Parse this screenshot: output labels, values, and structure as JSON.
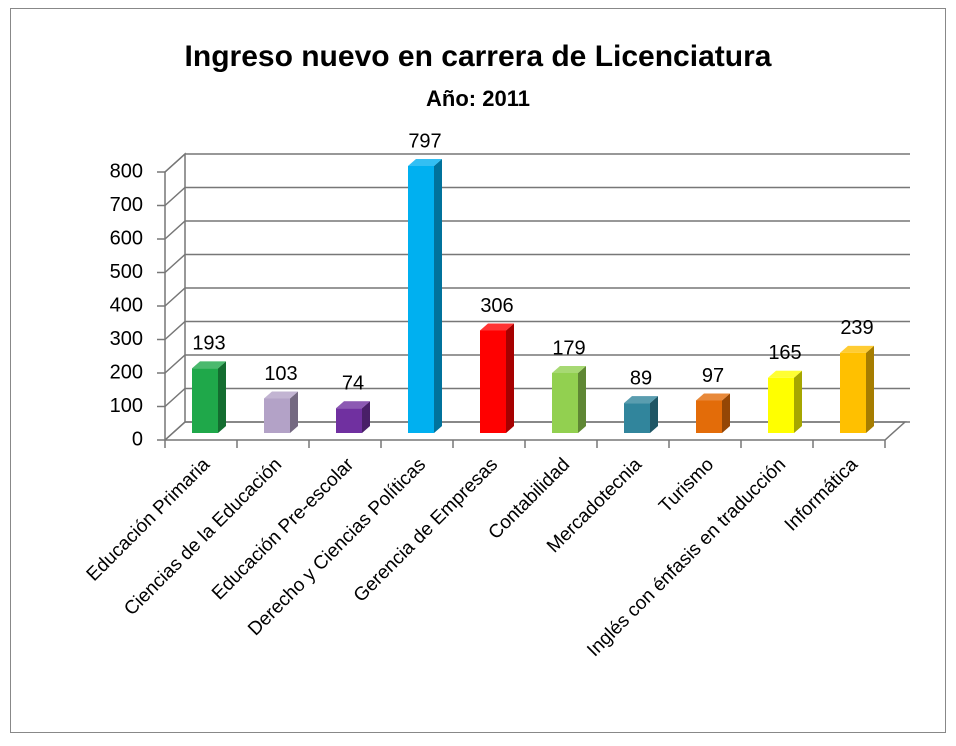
{
  "chart_data": {
    "type": "bar3d",
    "title": "Ingreso nuevo en carrera de Licenciatura",
    "subtitle": "Año: 2011",
    "categories": [
      "Educación Primaria",
      "Ciencias de la Educación",
      "Educación Pre-escolar",
      "Derecho y Ciencias Políticas",
      "Gerencia de Empresas",
      "Contabilidad",
      "Mercadotecnia",
      "Turismo",
      "Inglés con énfasis en traducción",
      "Informática"
    ],
    "values": [
      193,
      103,
      74,
      797,
      306,
      179,
      89,
      97,
      165,
      239
    ],
    "colors": [
      "#1fa84a",
      "#b3a2c7",
      "#7030a0",
      "#00b0f0",
      "#ff0000",
      "#92d050",
      "#31859c",
      "#e36c09",
      "#ffff00",
      "#ffc000"
    ],
    "ylim": [
      0,
      800
    ],
    "yticks": [
      0,
      100,
      200,
      300,
      400,
      500,
      600,
      700,
      800
    ],
    "grid": true
  }
}
